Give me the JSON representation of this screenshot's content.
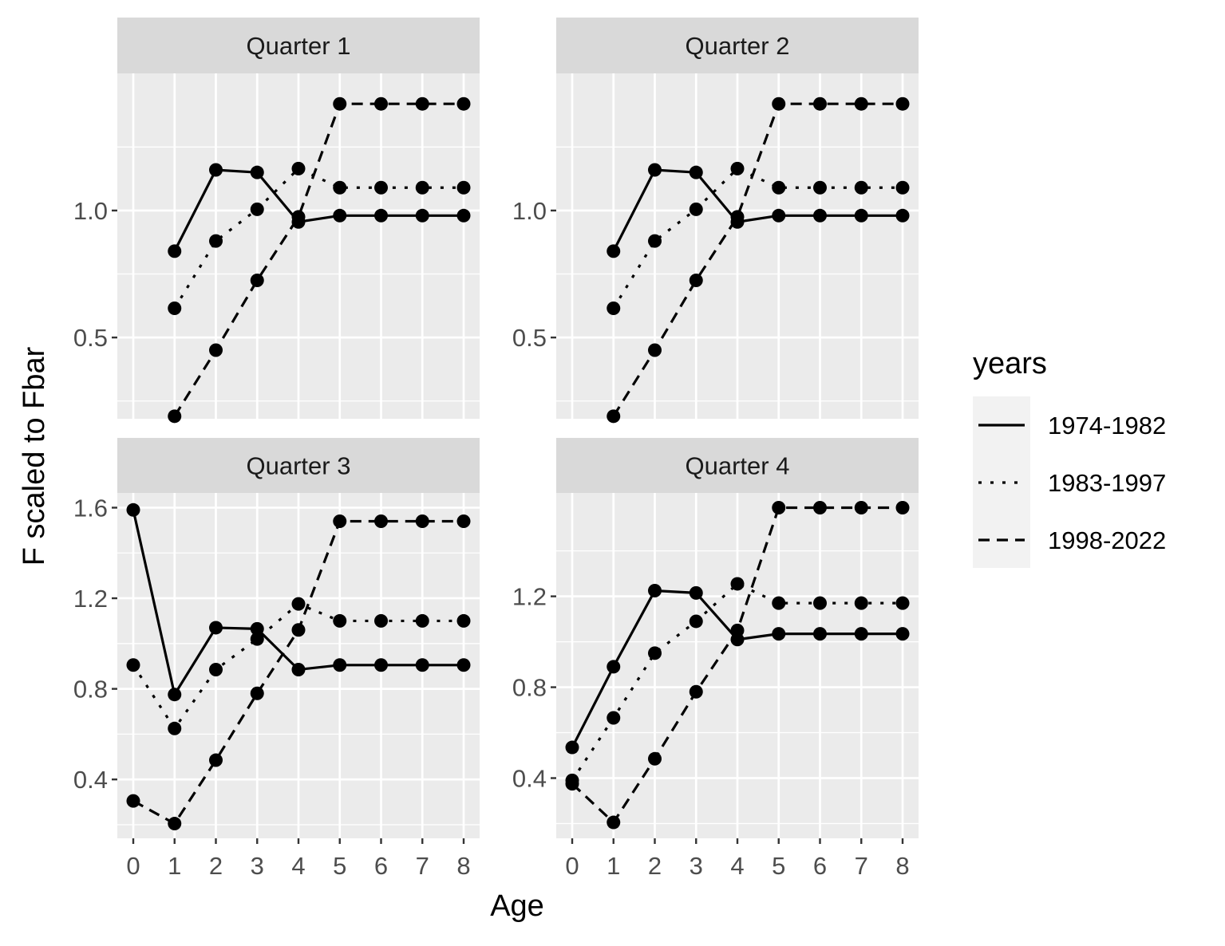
{
  "chart_data": {
    "type": "line",
    "xlabel": "Age",
    "ylabel": "F scaled to Fbar",
    "legend": {
      "title": "years",
      "position": "right",
      "entries": [
        {
          "label": "1974-1982",
          "linetype": "solid"
        },
        {
          "label": "1983-1997",
          "linetype": "dotted"
        },
        {
          "label": "1998-2022",
          "linetype": "dashed"
        }
      ]
    },
    "grid": true,
    "x_ticks": [
      "0",
      "1",
      "2",
      "3",
      "4",
      "5",
      "6",
      "7",
      "8"
    ],
    "facets": [
      {
        "title": "Quarter 1",
        "ylim": [
          0.18,
          1.54
        ],
        "y_ticks": [
          0.5,
          1.0
        ],
        "y_tick_labels": [
          "0.5",
          "1.0"
        ],
        "show_x_axis": false,
        "series": [
          {
            "name": "1974-1982",
            "x": [
              1,
              2,
              3,
              4,
              5,
              6,
              7,
              8
            ],
            "values": [
              0.84,
              1.16,
              1.15,
              0.955,
              0.98,
              0.98,
              0.98,
              0.98
            ]
          },
          {
            "name": "1983-1997",
            "x": [
              1,
              2,
              3,
              4,
              5,
              6,
              7,
              8
            ],
            "values": [
              0.615,
              0.88,
              1.005,
              1.165,
              1.09,
              1.09,
              1.09,
              1.09
            ]
          },
          {
            "name": "1998-2022",
            "x": [
              1,
              2,
              3,
              4,
              5,
              6,
              7,
              8
            ],
            "values": [
              0.19,
              0.45,
              0.725,
              0.975,
              1.42,
              1.42,
              1.42,
              1.42
            ]
          }
        ]
      },
      {
        "title": "Quarter 2",
        "ylim": [
          0.18,
          1.54
        ],
        "y_ticks": [
          0.5,
          1.0
        ],
        "y_tick_labels": [
          "0.5",
          "1.0"
        ],
        "show_x_axis": false,
        "series": [
          {
            "name": "1974-1982",
            "x": [
              1,
              2,
              3,
              4,
              5,
              6,
              7,
              8
            ],
            "values": [
              0.84,
              1.16,
              1.15,
              0.955,
              0.98,
              0.98,
              0.98,
              0.98
            ]
          },
          {
            "name": "1983-1997",
            "x": [
              1,
              2,
              3,
              4,
              5,
              6,
              7,
              8
            ],
            "values": [
              0.615,
              0.88,
              1.005,
              1.165,
              1.09,
              1.09,
              1.09,
              1.09
            ]
          },
          {
            "name": "1998-2022",
            "x": [
              1,
              2,
              3,
              4,
              5,
              6,
              7,
              8
            ],
            "values": [
              0.19,
              0.45,
              0.725,
              0.975,
              1.42,
              1.42,
              1.42,
              1.42
            ]
          }
        ]
      },
      {
        "title": "Quarter 3",
        "ylim": [
          0.14,
          1.665
        ],
        "y_ticks": [
          0.4,
          0.8,
          1.2,
          1.6
        ],
        "y_tick_labels": [
          "0.4",
          "0.8",
          "1.2",
          "1.6"
        ],
        "show_x_axis": true,
        "series": [
          {
            "name": "1974-1982",
            "x": [
              0,
              1,
              2,
              3,
              4,
              5,
              6,
              7,
              8
            ],
            "values": [
              1.59,
              0.775,
              1.07,
              1.065,
              0.885,
              0.905,
              0.905,
              0.905,
              0.905
            ]
          },
          {
            "name": "1983-1997",
            "x": [
              0,
              1,
              2,
              3,
              4,
              5,
              6,
              7,
              8
            ],
            "values": [
              0.905,
              0.625,
              0.885,
              1.02,
              1.175,
              1.1,
              1.1,
              1.1,
              1.1
            ]
          },
          {
            "name": "1998-2022",
            "x": [
              0,
              1,
              2,
              3,
              4,
              5,
              6,
              7,
              8
            ],
            "values": [
              0.305,
              0.205,
              0.485,
              0.78,
              1.06,
              1.54,
              1.54,
              1.54,
              1.54
            ]
          }
        ]
      },
      {
        "title": "Quarter 4",
        "ylim": [
          0.135,
          1.655
        ],
        "y_ticks": [
          0.4,
          0.8,
          1.2
        ],
        "y_tick_labels": [
          "0.4",
          "0.8",
          "1.2"
        ],
        "show_x_axis": true,
        "series": [
          {
            "name": "1974-1982",
            "x": [
              0,
              1,
              2,
              3,
              4,
              5,
              6,
              7,
              8
            ],
            "values": [
              0.535,
              0.89,
              1.225,
              1.215,
              1.01,
              1.035,
              1.035,
              1.035,
              1.035
            ]
          },
          {
            "name": "1983-1997",
            "x": [
              0,
              1,
              2,
              3,
              4,
              5,
              6,
              7,
              8
            ],
            "values": [
              0.39,
              0.665,
              0.95,
              1.09,
              1.255,
              1.17,
              1.17,
              1.17,
              1.17
            ]
          },
          {
            "name": "1998-2022",
            "x": [
              0,
              1,
              2,
              3,
              4,
              5,
              6,
              7,
              8
            ],
            "values": [
              0.375,
              0.205,
              0.485,
              0.78,
              1.05,
              1.59,
              1.59,
              1.59,
              1.59
            ]
          }
        ]
      }
    ]
  }
}
